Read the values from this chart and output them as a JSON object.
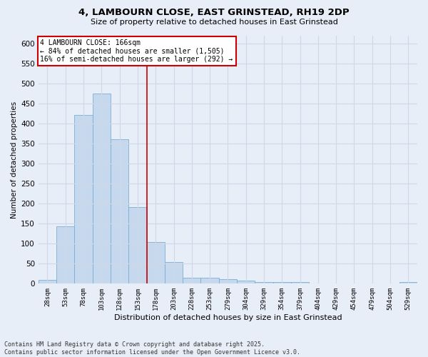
{
  "title_line1": "4, LAMBOURN CLOSE, EAST GRINSTEAD, RH19 2DP",
  "title_line2": "Size of property relative to detached houses in East Grinstead",
  "xlabel": "Distribution of detached houses by size in East Grinstead",
  "ylabel": "Number of detached properties",
  "footer_line1": "Contains HM Land Registry data © Crown copyright and database right 2025.",
  "footer_line2": "Contains public sector information licensed under the Open Government Licence v3.0.",
  "categories": [
    "28sqm",
    "53sqm",
    "78sqm",
    "103sqm",
    "128sqm",
    "153sqm",
    "178sqm",
    "203sqm",
    "228sqm",
    "253sqm",
    "279sqm",
    "304sqm",
    "329sqm",
    "354sqm",
    "379sqm",
    "404sqm",
    "429sqm",
    "454sqm",
    "479sqm",
    "504sqm",
    "529sqm"
  ],
  "values": [
    10,
    143,
    422,
    475,
    362,
    191,
    105,
    54,
    15,
    14,
    11,
    8,
    5,
    5,
    4,
    1,
    0,
    0,
    0,
    0,
    4
  ],
  "bar_color": "#c5d8ed",
  "bar_edge_color": "#7aafd4",
  "background_color": "#e8eef8",
  "grid_color": "#d0d8e8",
  "annotation_line1": "4 LAMBOURN CLOSE: 166sqm",
  "annotation_line2": "← 84% of detached houses are smaller (1,505)",
  "annotation_line3": "16% of semi-detached houses are larger (292) →",
  "annotation_box_facecolor": "#ffffff",
  "annotation_box_edgecolor": "#cc0000",
  "vline_color": "#cc0000",
  "vline_pos": 5.528,
  "ylim": [
    0,
    620
  ],
  "yticks": [
    0,
    50,
    100,
    150,
    200,
    250,
    300,
    350,
    400,
    450,
    500,
    550,
    600
  ]
}
